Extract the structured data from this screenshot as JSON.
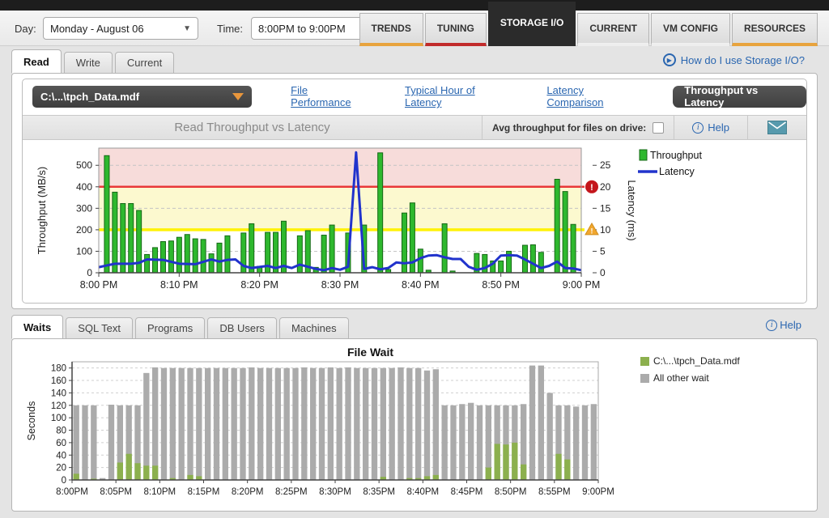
{
  "topbar": {
    "day_label": "Day:",
    "day_value": "Monday - August 06",
    "time_label": "Time:",
    "time_value": "8:00PM to 9:00PM",
    "tabs": [
      {
        "label": "TRENDS"
      },
      {
        "label": "TUNING"
      },
      {
        "label": "STORAGE I/O"
      },
      {
        "label": "CURRENT"
      },
      {
        "label": "VM CONFIG"
      },
      {
        "label": "RESOURCES"
      }
    ]
  },
  "read_tabs": {
    "items": [
      {
        "label": "Read"
      },
      {
        "label": "Write"
      },
      {
        "label": "Current"
      }
    ],
    "howto_link": "How do I use Storage I/O?"
  },
  "file_toolbar": {
    "file_selector": "C:\\...\\tpch_Data.mdf",
    "links": [
      {
        "label": "File Performance"
      },
      {
        "label": "Typical Hour of Latency"
      },
      {
        "label": "Latency Comparison"
      }
    ],
    "active_button": "Throughput vs Latency"
  },
  "chart_header": {
    "title": "Read Throughput vs Latency",
    "avg_label": "Avg throughput for files on drive:",
    "help_label": "Help"
  },
  "waits_tabs": {
    "items": [
      {
        "label": "Waits"
      },
      {
        "label": "SQL Text"
      },
      {
        "label": "Programs"
      },
      {
        "label": "DB Users"
      },
      {
        "label": "Machines"
      }
    ],
    "help_label": "Help"
  },
  "colors": {
    "accent_orange": "#E8A33D",
    "accent_red": "#C12B2B",
    "link_blue": "#2A66B0",
    "bar_green": "#2EB82E",
    "latency_blue": "#2133CC",
    "threshold_red": "#E93838",
    "threshold_yellow": "#FFF200",
    "zone_red": "#F7DCDA",
    "zone_yellow": "#FCF9CF",
    "wait_green": "#8CB04E",
    "wait_gray": "#ABABAB"
  },
  "chart_data": [
    {
      "type": "bar",
      "subtype": "combo-bar-line",
      "title": "Read Throughput vs Latency",
      "xlim_minutes": [
        0,
        60
      ],
      "x_ticks": [
        {
          "m": 0,
          "label": "8:00 PM"
        },
        {
          "m": 10,
          "label": "8:10 PM"
        },
        {
          "m": 20,
          "label": "8:20 PM"
        },
        {
          "m": 30,
          "label": "8:30 PM"
        },
        {
          "m": 40,
          "label": "8:40 PM"
        },
        {
          "m": 50,
          "label": "8:50 PM"
        },
        {
          "m": 60,
          "label": "9:00 PM"
        }
      ],
      "left_axis": {
        "label": "Throughput (MB/s)",
        "lim": [
          0,
          580
        ],
        "ticks": [
          0,
          100,
          200,
          300,
          400,
          500
        ]
      },
      "right_axis": {
        "label": "Latency (ms)",
        "lim": [
          0,
          29
        ],
        "ticks": [
          0,
          5,
          10,
          15,
          20,
          25
        ]
      },
      "zones": [
        {
          "from": 400,
          "to": 580,
          "color": "#F7DCDA"
        },
        {
          "from": 200,
          "to": 400,
          "color": "#FCF9CF"
        }
      ],
      "threshold_lines": [
        {
          "value": 400,
          "color": "#E93838",
          "badge": "error"
        },
        {
          "value": 200,
          "color": "#FFF200",
          "badge": "warning"
        }
      ],
      "series": [
        {
          "name": "Throughput",
          "kind": "bar",
          "color": "#2EB82E",
          "stroke": "#156815",
          "points": [
            [
              1,
              545
            ],
            [
              2,
              375
            ],
            [
              3,
              322
            ],
            [
              4,
              322
            ],
            [
              5,
              290
            ],
            [
              6,
              85
            ],
            [
              7,
              117
            ],
            [
              8,
              145
            ],
            [
              9,
              148
            ],
            [
              10,
              165
            ],
            [
              11,
              178
            ],
            [
              12,
              158
            ],
            [
              13,
              155
            ],
            [
              14,
              88
            ],
            [
              15,
              138
            ],
            [
              16,
              172
            ],
            [
              18,
              185
            ],
            [
              19,
              228
            ],
            [
              20,
              30
            ],
            [
              21,
              188
            ],
            [
              22,
              188
            ],
            [
              23,
              240
            ],
            [
              25,
              172
            ],
            [
              26,
              196
            ],
            [
              27,
              25
            ],
            [
              28,
              175
            ],
            [
              29,
              222
            ],
            [
              31,
              185
            ],
            [
              33,
              222
            ],
            [
              35,
              558
            ],
            [
              36,
              15
            ],
            [
              38,
              278
            ],
            [
              39,
              325
            ],
            [
              40,
              110
            ],
            [
              41,
              12
            ],
            [
              43,
              228
            ],
            [
              44,
              8
            ],
            [
              47,
              90
            ],
            [
              48,
              85
            ],
            [
              49,
              55
            ],
            [
              50,
              55
            ],
            [
              51,
              100
            ],
            [
              53,
              128
            ],
            [
              54,
              130
            ],
            [
              55,
              95
            ],
            [
              57,
              435
            ],
            [
              58,
              378
            ],
            [
              59,
              225
            ]
          ]
        },
        {
          "name": "Latency",
          "kind": "line",
          "color": "#2133CC",
          "points": [
            [
              0,
              1.3
            ],
            [
              2,
              2.1
            ],
            [
              4,
              2.1
            ],
            [
              5,
              2.3
            ],
            [
              6,
              3.1
            ],
            [
              8,
              3.0
            ],
            [
              10,
              2.1
            ],
            [
              12,
              2.0
            ],
            [
              14,
              3.1
            ],
            [
              15,
              2.6
            ],
            [
              16,
              3.0
            ],
            [
              17,
              3.1
            ],
            [
              18,
              1.6
            ],
            [
              19,
              1.1
            ],
            [
              21,
              1.6
            ],
            [
              22,
              1.1
            ],
            [
              23,
              1.6
            ],
            [
              24,
              1.1
            ],
            [
              25,
              1.9
            ],
            [
              26,
              1.4
            ],
            [
              27,
              0.9
            ],
            [
              28,
              0.6
            ],
            [
              29,
              1.1
            ],
            [
              30,
              0.7
            ],
            [
              31,
              1.4
            ],
            [
              32,
              28
            ],
            [
              33,
              0.9
            ],
            [
              34,
              1.3
            ],
            [
              35,
              0.8
            ],
            [
              36,
              1.1
            ],
            [
              37,
              2.4
            ],
            [
              38,
              2.2
            ],
            [
              39,
              2.4
            ],
            [
              40,
              3.4
            ],
            [
              41,
              4.0
            ],
            [
              42,
              4.1
            ],
            [
              43,
              3.6
            ],
            [
              44,
              3.2
            ],
            [
              45,
              3.2
            ],
            [
              46,
              1.4
            ],
            [
              47,
              0.7
            ],
            [
              48,
              1.1
            ],
            [
              49,
              2.1
            ],
            [
              50,
              4.0
            ],
            [
              51,
              4.1
            ],
            [
              52,
              4.0
            ],
            [
              53,
              3.1
            ],
            [
              54,
              2.1
            ],
            [
              55,
              1.1
            ],
            [
              56,
              1.6
            ],
            [
              57,
              2.6
            ],
            [
              58,
              1.1
            ],
            [
              59,
              1.0
            ],
            [
              60,
              0.6
            ]
          ]
        }
      ],
      "legend_position": "top-right"
    },
    {
      "type": "bar",
      "subtype": "overlay-bars",
      "title": "File Wait",
      "ylabel": "Seconds",
      "ylim": [
        0,
        190
      ],
      "yticks": [
        0,
        20,
        40,
        60,
        80,
        100,
        120,
        140,
        160,
        180
      ],
      "x_tick_minutes": [
        0,
        5,
        10,
        15,
        20,
        25,
        30,
        35,
        40,
        45,
        50,
        55,
        60
      ],
      "x_tick_labels": [
        "8:00PM",
        "8:05PM",
        "8:10PM",
        "8:15PM",
        "8:20PM",
        "8:25PM",
        "8:30PM",
        "8:35PM",
        "8:40PM",
        "8:45PM",
        "8:50PM",
        "8:55PM",
        "9:00PM"
      ],
      "series": [
        {
          "name": "All other wait",
          "color": "#ABABAB",
          "values": [
            120,
            120,
            120,
            3,
            121,
            120,
            120,
            120,
            172,
            181,
            180,
            180,
            180,
            180,
            180,
            180,
            180,
            180,
            180,
            180,
            181,
            180,
            180,
            180,
            180,
            180,
            181,
            180,
            180,
            181,
            180,
            181,
            180,
            180,
            180,
            180,
            180,
            181,
            180,
            180,
            176,
            178,
            120,
            120,
            122,
            124,
            120,
            120,
            120,
            120,
            120,
            122,
            184,
            184,
            140,
            120,
            120,
            118,
            120,
            122
          ]
        },
        {
          "name": "C:\\...\\tpch_Data.mdf",
          "color": "#8CB04E",
          "values": [
            10,
            0,
            2,
            0,
            0,
            28,
            42,
            27,
            23,
            23,
            0,
            3,
            0,
            8,
            6,
            0,
            0,
            0,
            0,
            0,
            0,
            0,
            0,
            0,
            0,
            0,
            0,
            0,
            0,
            0,
            0,
            0,
            0,
            0,
            0,
            5,
            0,
            0,
            3,
            3,
            6,
            8,
            0,
            0,
            0,
            0,
            0,
            20,
            58,
            57,
            60,
            25,
            0,
            0,
            0,
            42,
            33,
            0,
            0,
            0
          ]
        }
      ],
      "legend_position": "right"
    }
  ]
}
